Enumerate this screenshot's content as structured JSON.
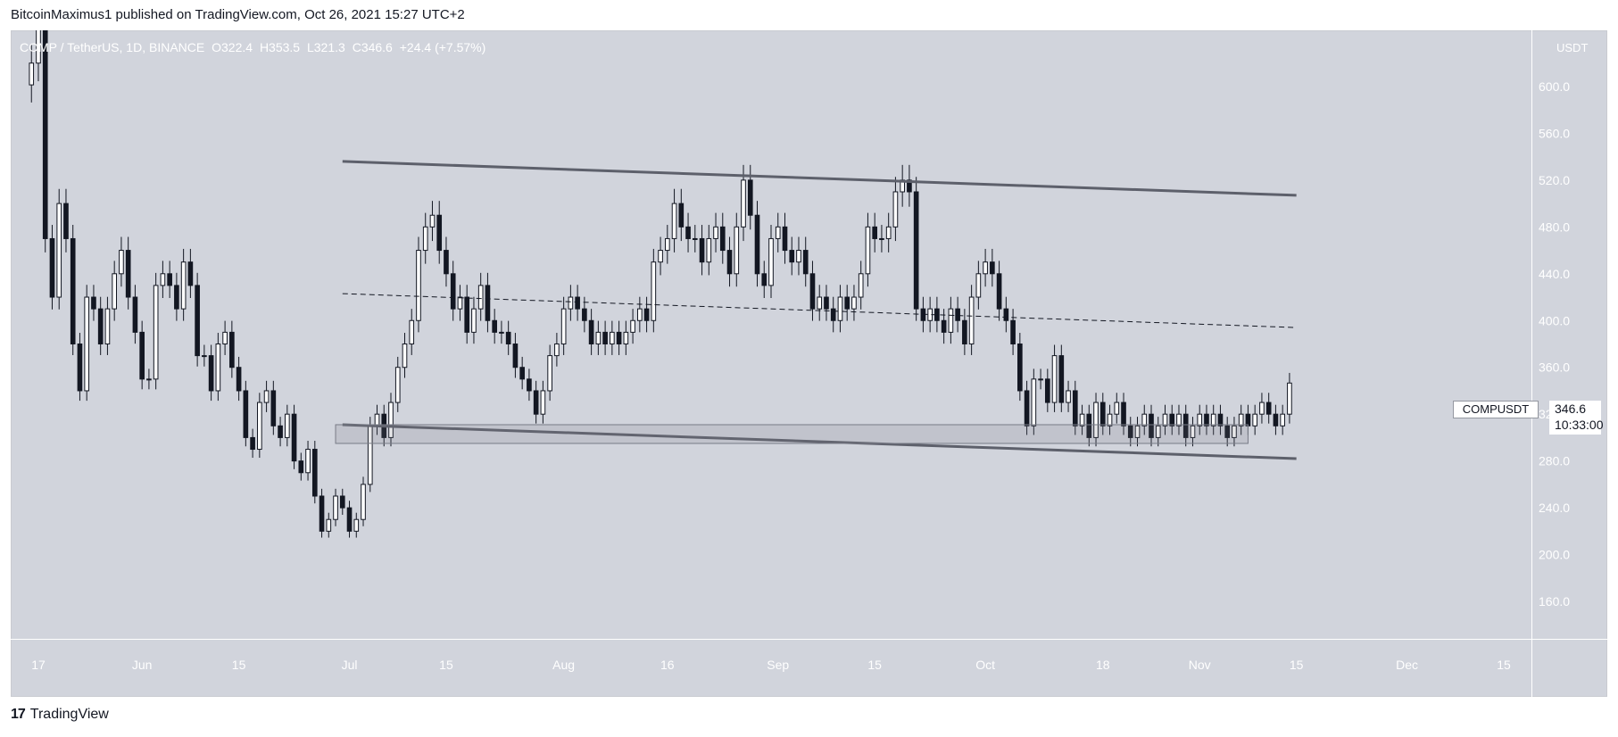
{
  "header": {
    "published": "BitcoinMaximus1 published on TradingView.com, Oct 26, 2021 15:27 UTC+2"
  },
  "symbol": {
    "name": "COMP / TetherUS, 1D, BINANCE",
    "open": "O322.4",
    "high": "H353.5",
    "low": "L321.3",
    "close": "C346.6",
    "change": "+24.4 (+7.57%)"
  },
  "price_axis": {
    "unit": "USDT"
  },
  "price_tag": {
    "symbol": "COMPUSDT",
    "price": "346.6",
    "countdown": "10:33:00"
  },
  "footer": {
    "brand": "TradingView",
    "logo": "17"
  },
  "colors": {
    "background": "#d1d4dc",
    "up_candle": "#ffffff",
    "down_candle": "#131722",
    "trendline": "#5d606b"
  },
  "chart_data": {
    "type": "candlestick",
    "symbol": "COMPUSDT",
    "timeframe": "1D",
    "y_ticks": [
      160,
      200,
      240,
      280,
      320,
      360,
      400,
      440,
      480,
      520,
      560,
      600
    ],
    "y_tick_labels": [
      "160.0",
      "200.0",
      "240.0",
      "280.0",
      "320.0",
      "360.0",
      "400.0",
      "440.0",
      "480.0",
      "520.0",
      "560.0",
      "600.0"
    ],
    "ylim": [
      128,
      648
    ],
    "x_start": "2021-05-13",
    "x_end": "2021-12-19",
    "x_ticks": [
      {
        "date": "2021-05-17",
        "label": "17"
      },
      {
        "date": "2021-06-01",
        "label": "Jun"
      },
      {
        "date": "2021-06-15",
        "label": "15"
      },
      {
        "date": "2021-07-01",
        "label": "Jul"
      },
      {
        "date": "2021-07-15",
        "label": "15"
      },
      {
        "date": "2021-08-01",
        "label": "Aug"
      },
      {
        "date": "2021-08-16",
        "label": "16"
      },
      {
        "date": "2021-09-01",
        "label": "Sep"
      },
      {
        "date": "2021-09-15",
        "label": "15"
      },
      {
        "date": "2021-10-01",
        "label": "Oct"
      },
      {
        "date": "2021-10-18",
        "label": "18"
      },
      {
        "date": "2021-11-01",
        "label": "Nov"
      },
      {
        "date": "2021-11-15",
        "label": "15"
      },
      {
        "date": "2021-12-01",
        "label": "Dec"
      },
      {
        "date": "2021-12-15",
        "label": "15"
      }
    ],
    "start_date": "2021-05-16",
    "closes": [
      620,
      650,
      470,
      420,
      500,
      470,
      380,
      340,
      420,
      410,
      380,
      410,
      440,
      460,
      420,
      390,
      350,
      350,
      430,
      440,
      430,
      410,
      450,
      430,
      370,
      370,
      340,
      380,
      390,
      360,
      340,
      300,
      290,
      330,
      340,
      310,
      300,
      320,
      280,
      270,
      290,
      250,
      220,
      230,
      250,
      240,
      220,
      230,
      260,
      310,
      320,
      300,
      330,
      360,
      380,
      400,
      460,
      480,
      490,
      460,
      440,
      410,
      420,
      390,
      410,
      430,
      400,
      390,
      390,
      380,
      360,
      350,
      340,
      320,
      340,
      370,
      380,
      410,
      420,
      410,
      400,
      380,
      390,
      380,
      390,
      380,
      390,
      400,
      410,
      400,
      450,
      460,
      470,
      500,
      480,
      470,
      470,
      450,
      470,
      480,
      460,
      440,
      480,
      520,
      490,
      440,
      430,
      470,
      480,
      460,
      450,
      460,
      440,
      410,
      420,
      410,
      400,
      420,
      410,
      420,
      440,
      480,
      470,
      470,
      480,
      510,
      520,
      510,
      410,
      400,
      410,
      400,
      390,
      410,
      400,
      380,
      420,
      440,
      450,
      440,
      410,
      400,
      380,
      340,
      310,
      350,
      350,
      330,
      370,
      330,
      340,
      310,
      320,
      300,
      330,
      310,
      320,
      330,
      310,
      300,
      310,
      320,
      300,
      310,
      320,
      310,
      320,
      300,
      310,
      320,
      310,
      320,
      310,
      300,
      310,
      320,
      310,
      320,
      330,
      320,
      310,
      320,
      346.6
    ],
    "price_tag": 346.6,
    "overlays": [
      {
        "kind": "trendline",
        "style": "solid",
        "from": {
          "date": "2021-06-30",
          "price": 536
        },
        "to": {
          "date": "2021-11-15",
          "price": 507
        }
      },
      {
        "kind": "trendline",
        "style": "dashed",
        "from": {
          "date": "2021-06-30",
          "price": 423
        },
        "to": {
          "date": "2021-11-15",
          "price": 394
        }
      },
      {
        "kind": "trendline",
        "style": "solid",
        "from": {
          "date": "2021-06-30",
          "price": 311
        },
        "to": {
          "date": "2021-11-15",
          "price": 282
        }
      },
      {
        "kind": "zone",
        "from": {
          "date": "2021-06-29",
          "price": 311
        },
        "to": {
          "date": "2021-11-08",
          "price": 295
        }
      }
    ]
  }
}
